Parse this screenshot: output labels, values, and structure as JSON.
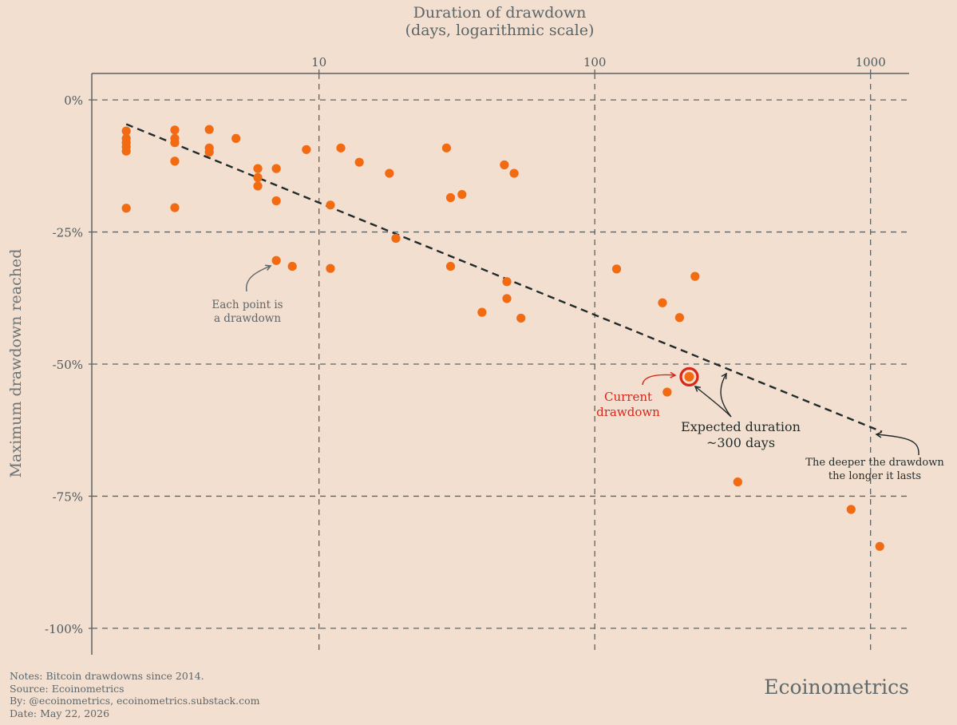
{
  "colors": {
    "background": "#f3dfcf",
    "point": "#f26a12",
    "current": "#d8261b",
    "trend": "#1f2b2b",
    "grid": "#5b6466",
    "text": "#4f5a5e"
  },
  "chart_data": {
    "type": "scatter",
    "title": "Duration of drawdown",
    "subtitle": "(days, logarithmic scale)",
    "xlabel": "Duration of drawdown (days, logarithmic scale)",
    "ylabel": "Maximum drawdown reached",
    "x_scale": "log",
    "x_axis_position": "top",
    "xlim": [
      1.5,
      1380
    ],
    "ylim": [
      -105,
      5
    ],
    "x_ticks": [
      10,
      100,
      1000
    ],
    "x_tick_labels": [
      "10",
      "100",
      "1000"
    ],
    "y_ticks": [
      0,
      -25,
      -50,
      -75,
      -100
    ],
    "y_tick_labels": [
      "0%",
      "-25%",
      "-50%",
      "-75%",
      "-100%"
    ],
    "grid": true,
    "series": [
      {
        "points": [
          [
            2,
            -5.9
          ],
          [
            2,
            -7.3
          ],
          [
            2,
            -8.1
          ],
          [
            2,
            -8.9
          ],
          [
            2,
            -9.7
          ],
          [
            2,
            -20.5
          ],
          [
            3,
            -5.7
          ],
          [
            3,
            -7.3
          ],
          [
            3,
            -8.1
          ],
          [
            3,
            -11.6
          ],
          [
            3,
            -20.4
          ],
          [
            4,
            -5.6
          ],
          [
            4,
            -9.1
          ],
          [
            4,
            -9.9
          ],
          [
            5,
            -7.3
          ],
          [
            6,
            -13.0
          ],
          [
            6,
            -14.7
          ],
          [
            6,
            -16.3
          ],
          [
            7,
            -13.0
          ],
          [
            7,
            -19.1
          ],
          [
            7,
            -30.4
          ],
          [
            8,
            -31.5
          ],
          [
            9,
            -9.4
          ],
          [
            11,
            -19.9
          ],
          [
            11,
            -31.9
          ],
          [
            12,
            -9.1
          ],
          [
            14,
            -11.8
          ],
          [
            18,
            -13.9
          ],
          [
            19,
            -26.2
          ],
          [
            29,
            -9.1
          ],
          [
            30,
            -18.5
          ],
          [
            30,
            -31.5
          ],
          [
            33,
            -17.9
          ],
          [
            39,
            -40.2
          ],
          [
            47,
            -12.3
          ],
          [
            48,
            -34.4
          ],
          [
            48,
            -37.6
          ],
          [
            51,
            -13.9
          ],
          [
            54,
            -41.3
          ],
          [
            120,
            -32.0
          ],
          [
            176,
            -38.4
          ],
          [
            183,
            -55.3
          ],
          [
            203,
            -41.2
          ],
          [
            231,
            -33.4
          ],
          [
            330,
            -72.3
          ],
          [
            850,
            -77.5
          ],
          [
            1080,
            -84.5
          ]
        ]
      },
      {
        "points": [
          [
            220,
            -52.4
          ]
        ]
      }
    ],
    "trendline": {
      "points": [
        [
          2,
          -4.6
        ],
        [
          1100,
          -62.8
        ]
      ],
      "style": "dashed"
    },
    "annotations": [
      {
        "id": "each-point",
        "lines": [
          "Each point is",
          "a drawdown"
        ]
      },
      {
        "id": "current",
        "lines": [
          "Current",
          "drawdown"
        ]
      },
      {
        "id": "expected",
        "lines": [
          "Expected duration",
          "~300 days"
        ]
      },
      {
        "id": "deeper",
        "lines": [
          "The deeper the drawdown",
          "the longer it lasts"
        ]
      }
    ]
  },
  "footer": {
    "notes": "Notes: Bitcoin drawdowns since 2014.",
    "source": "Source: Ecoinometrics",
    "by": "By: @ecoinometrics, ecoinometrics.substack.com",
    "date": "Date: May 22, 2026",
    "brand": "Ecoinometrics"
  }
}
